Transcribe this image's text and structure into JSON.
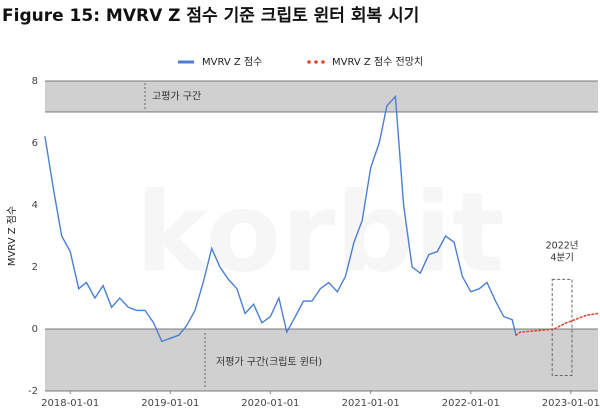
{
  "chart_data": {
    "type": "line",
    "title": "Figure 15: MVRV Z 점수 기준 크립토 윈터 회복 시기",
    "y_label": "MVRV Z 점수",
    "watermark": "korbit",
    "xlim": [
      "2017-10-01",
      "2023-04-10"
    ],
    "xticks": [
      "2018-01-01",
      "2019-01-01",
      "2020-01-01",
      "2021-01-01",
      "2022-01-01",
      "2023-01-01"
    ],
    "ylim": [
      -2,
      8
    ],
    "yticks": [
      -2,
      0,
      2,
      4,
      6,
      8
    ],
    "grid": false,
    "bands": [
      {
        "from": 7,
        "to": 8,
        "label": "고평가 구간",
        "color": "#d0d0d0"
      },
      {
        "from": -2,
        "to": 0,
        "label": "저평가 구간(크립토 윈터)",
        "color": "#d0d0d0"
      }
    ],
    "highlight": {
      "label_lines": [
        "2022년",
        "4분기"
      ],
      "xrange": [
        "2022-10-25",
        "2023-01-05"
      ],
      "yrange": [
        -1.5,
        1.6
      ]
    },
    "series": [
      {
        "name": "MVRV Z 점수",
        "color": "#4a7fd4",
        "style": "solid",
        "x": [
          "2017-10-01",
          "2017-11-01",
          "2017-12-01",
          "2018-01-01",
          "2018-02-01",
          "2018-03-01",
          "2018-04-01",
          "2018-05-01",
          "2018-06-01",
          "2018-07-01",
          "2018-08-01",
          "2018-09-01",
          "2018-10-01",
          "2018-11-01",
          "2018-12-01",
          "2019-01-01",
          "2019-02-01",
          "2019-03-01",
          "2019-04-01",
          "2019-05-01",
          "2019-06-01",
          "2019-07-01",
          "2019-08-01",
          "2019-09-01",
          "2019-10-01",
          "2019-11-01",
          "2019-12-01",
          "2020-01-01",
          "2020-02-01",
          "2020-03-01",
          "2020-04-01",
          "2020-05-01",
          "2020-06-01",
          "2020-07-01",
          "2020-08-01",
          "2020-09-01",
          "2020-10-01",
          "2020-11-01",
          "2020-12-01",
          "2021-01-01",
          "2021-02-01",
          "2021-03-01",
          "2021-04-01",
          "2021-05-01",
          "2021-06-01",
          "2021-07-01",
          "2021-08-01",
          "2021-09-01",
          "2021-10-01",
          "2021-11-01",
          "2021-12-01",
          "2022-01-01",
          "2022-02-01",
          "2022-03-01",
          "2022-04-01",
          "2022-05-01",
          "2022-06-01",
          "2022-06-15"
        ],
        "values": [
          6.2,
          4.5,
          3.0,
          2.5,
          1.3,
          1.5,
          1.0,
          1.4,
          0.7,
          1.0,
          0.7,
          0.6,
          0.6,
          0.2,
          -0.4,
          -0.3,
          -0.2,
          0.1,
          0.6,
          1.5,
          2.6,
          2.0,
          1.6,
          1.3,
          0.5,
          0.8,
          0.2,
          0.4,
          1.0,
          -0.1,
          0.4,
          0.9,
          0.9,
          1.3,
          1.5,
          1.2,
          1.7,
          2.8,
          3.5,
          5.2,
          6.0,
          7.2,
          7.5,
          4.0,
          2.0,
          1.8,
          2.4,
          2.5,
          3.0,
          2.8,
          1.7,
          1.2,
          1.3,
          1.5,
          0.9,
          0.4,
          0.3,
          -0.2
        ]
      },
      {
        "name": "MVRV Z 점수 전망치",
        "color": "#e0452e",
        "style": "dotted",
        "x": [
          "2022-06-15",
          "2022-07-01",
          "2022-09-01",
          "2022-11-01",
          "2022-12-15",
          "2023-01-15",
          "2023-03-01",
          "2023-04-10"
        ],
        "values": [
          -0.2,
          -0.1,
          -0.05,
          0.0,
          0.2,
          0.3,
          0.45,
          0.5
        ]
      }
    ]
  }
}
